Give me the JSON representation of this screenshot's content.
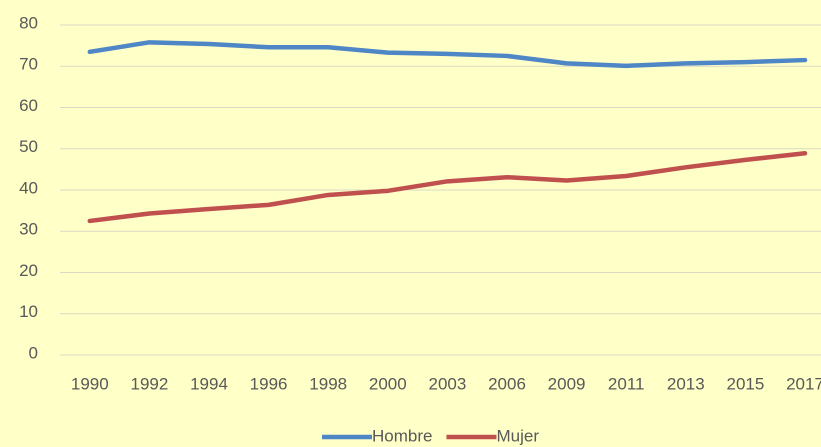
{
  "chart_data": {
    "type": "line",
    "categories": [
      "1990",
      "1992",
      "1994",
      "1996",
      "1998",
      "2000",
      "2003",
      "2006",
      "2009",
      "2011",
      "2013",
      "2015",
      "2017"
    ],
    "series": [
      {
        "name": "Hombre",
        "color": "#4f86c6",
        "values": [
          73.5,
          75.8,
          75.4,
          74.6,
          74.6,
          73.3,
          73.0,
          72.5,
          70.7,
          70.1,
          70.7,
          71.0,
          71.5
        ]
      },
      {
        "name": "Mujer",
        "color": "#c0504d",
        "values": [
          32.5,
          34.3,
          35.4,
          36.4,
          38.8,
          39.8,
          42.1,
          43.1,
          42.3,
          43.4,
          45.5,
          47.3,
          48.9
        ]
      }
    ],
    "ylim": [
      0,
      80
    ],
    "yticks": [
      0,
      10,
      20,
      30,
      40,
      50,
      60,
      70,
      80
    ],
    "grid": true,
    "legend": "bottom"
  }
}
